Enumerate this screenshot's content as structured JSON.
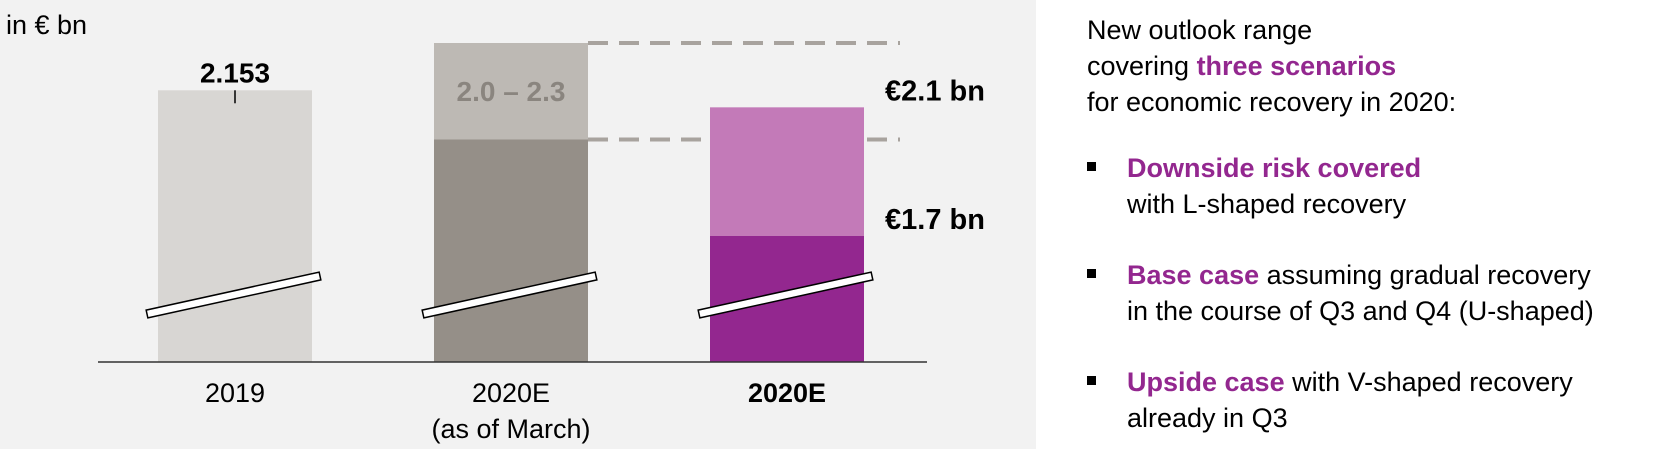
{
  "unit_label": "in € bn",
  "chart_data": {
    "type": "bar",
    "unit": "in € bn",
    "axis_break": true,
    "categories": [
      {
        "label": "2019",
        "bold": false
      },
      {
        "label": "2020E",
        "sublabel": "(as of March)",
        "bold": false
      },
      {
        "label": "2020E",
        "bold": true
      }
    ],
    "bars": [
      {
        "category": "2019",
        "value": 2.153,
        "value_label": "2.153",
        "color": "#d8d6d3"
      },
      {
        "category": "2020E (as of March)",
        "range": [
          2.0,
          2.3
        ],
        "range_label": "2.0 – 2.3",
        "base_color": "#958f88",
        "range_color": "#bdb9b4",
        "range_label_color": "#8a857f"
      },
      {
        "category": "2020E",
        "range": [
          1.7,
          2.1
        ],
        "base_color": "#93278f",
        "range_color": "#c37ab8"
      }
    ],
    "reference_lines": [
      {
        "value": 2.3,
        "style": "dashed",
        "color": "#a8a39e"
      },
      {
        "value": 2.0,
        "style": "dashed",
        "color": "#a8a39e"
      }
    ],
    "annotations": [
      {
        "text": "€2.1 bn",
        "value": 2.1
      },
      {
        "text": "€1.7 bn",
        "value": 1.7
      }
    ]
  },
  "outlook": {
    "intro_line1": "New outlook range",
    "intro_line2_prefix": "covering ",
    "intro_line2_highlight": "three scenarios",
    "intro_line3": "for economic recovery in 2020:",
    "bullets": [
      {
        "highlight": "Downside risk covered",
        "rest": "",
        "line2": "with L-shaped recovery"
      },
      {
        "highlight": "Base case",
        "rest": " assuming gradual recovery",
        "line2": "in the course of Q3 and Q4 (U-shaped)"
      },
      {
        "highlight": "Upside case",
        "rest": " with V-shaped recovery",
        "line2": "already in Q3"
      }
    ]
  },
  "colors": {
    "accent": "#93278f",
    "panel_bg": "#f2f2f2"
  }
}
